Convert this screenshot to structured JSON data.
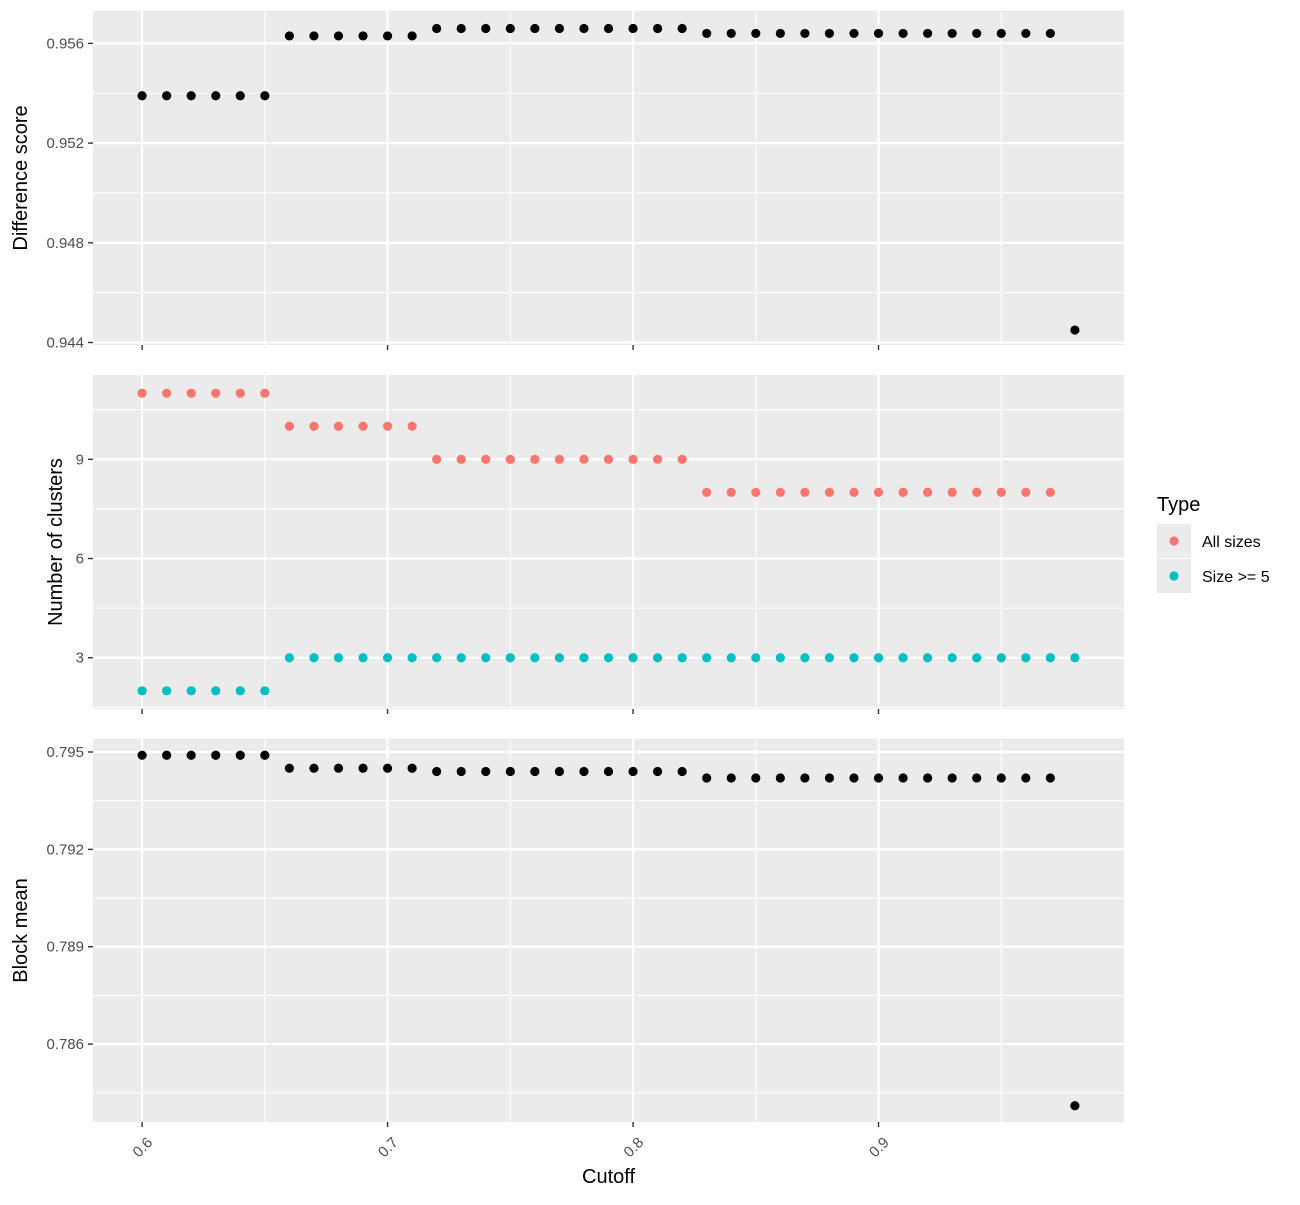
{
  "chart_data": {
    "type": "scatter",
    "layout": "vertically stacked facets with shared x-axis",
    "xlabel": "Cutoff",
    "x_ticks": [
      "0.6",
      "0.7",
      "0.8",
      "0.9"
    ],
    "xlim": [
      0.58,
      1.0
    ],
    "grid": true,
    "colors": {
      "panel_bg": "#ebebeb",
      "grid": "#ffffff",
      "point_default": "#000000",
      "all_sizes": "#f8766d",
      "size_ge_5": "#00bfc4"
    },
    "legend": {
      "title": "Type",
      "position": "right",
      "entries": [
        {
          "label": "All sizes",
          "color": "#f8766d"
        },
        {
          "label": "Size >= 5",
          "color": "#00bfc4"
        }
      ]
    },
    "panels": [
      {
        "ylabel": "Difference score",
        "y_ticks": [
          "0.944",
          "0.948",
          "0.952",
          "0.956"
        ],
        "ylim": [
          0.9439,
          0.9573
        ],
        "series": [
          {
            "color": "#000000",
            "x": [
              0.6,
              0.61,
              0.62,
              0.63,
              0.64,
              0.65,
              0.66,
              0.67,
              0.68,
              0.69,
              0.7,
              0.71,
              0.72,
              0.73,
              0.74,
              0.75,
              0.76,
              0.77,
              0.78,
              0.79,
              0.8,
              0.81,
              0.82,
              0.83,
              0.84,
              0.85,
              0.86,
              0.87,
              0.88,
              0.89,
              0.9,
              0.91,
              0.92,
              0.93,
              0.94,
              0.95,
              0.96,
              0.97,
              0.98
            ],
            "y": [
              0.9539,
              0.9539,
              0.9539,
              0.9539,
              0.9539,
              0.9539,
              0.9563,
              0.9563,
              0.9563,
              0.9563,
              0.9563,
              0.9563,
              0.9566,
              0.9566,
              0.9566,
              0.9566,
              0.9566,
              0.9566,
              0.9566,
              0.9566,
              0.9566,
              0.9566,
              0.9566,
              0.9564,
              0.9564,
              0.9564,
              0.9564,
              0.9564,
              0.9564,
              0.9564,
              0.9564,
              0.9564,
              0.9564,
              0.9564,
              0.9564,
              0.9564,
              0.9564,
              0.9564,
              0.9445
            ]
          }
        ]
      },
      {
        "ylabel": "Number of clusters",
        "y_ticks": [
          "3",
          "6",
          "9"
        ],
        "ylim": [
          1.45,
          11.55
        ],
        "series": [
          {
            "name": "All sizes",
            "color": "#f8766d",
            "x": [
              0.6,
              0.61,
              0.62,
              0.63,
              0.64,
              0.65,
              0.66,
              0.67,
              0.68,
              0.69,
              0.7,
              0.71,
              0.72,
              0.73,
              0.74,
              0.75,
              0.76,
              0.77,
              0.78,
              0.79,
              0.8,
              0.81,
              0.82,
              0.83,
              0.84,
              0.85,
              0.86,
              0.87,
              0.88,
              0.89,
              0.9,
              0.91,
              0.92,
              0.93,
              0.94,
              0.95,
              0.96,
              0.97
            ],
            "y": [
              11,
              11,
              11,
              11,
              11,
              11,
              10,
              10,
              10,
              10,
              10,
              10,
              9,
              9,
              9,
              9,
              9,
              9,
              9,
              9,
              9,
              9,
              9,
              8,
              8,
              8,
              8,
              8,
              8,
              8,
              8,
              8,
              8,
              8,
              8,
              8,
              8,
              8
            ]
          },
          {
            "name": "Size >= 5",
            "color": "#00bfc4",
            "x": [
              0.6,
              0.61,
              0.62,
              0.63,
              0.64,
              0.65,
              0.66,
              0.67,
              0.68,
              0.69,
              0.7,
              0.71,
              0.72,
              0.73,
              0.74,
              0.75,
              0.76,
              0.77,
              0.78,
              0.79,
              0.8,
              0.81,
              0.82,
              0.83,
              0.84,
              0.85,
              0.86,
              0.87,
              0.88,
              0.89,
              0.9,
              0.91,
              0.92,
              0.93,
              0.94,
              0.95,
              0.96,
              0.97,
              0.98
            ],
            "y": [
              2,
              2,
              2,
              2,
              2,
              2,
              3,
              3,
              3,
              3,
              3,
              3,
              3,
              3,
              3,
              3,
              3,
              3,
              3,
              3,
              3,
              3,
              3,
              3,
              3,
              3,
              3,
              3,
              3,
              3,
              3,
              3,
              3,
              3,
              3,
              3,
              3,
              3,
              3
            ]
          }
        ]
      },
      {
        "ylabel": "Block mean",
        "y_ticks": [
          "0.786",
          "0.789",
          "0.792",
          "0.795"
        ],
        "ylim": [
          0.7836,
          0.7954
        ],
        "series": [
          {
            "color": "#000000",
            "x": [
              0.6,
              0.61,
              0.62,
              0.63,
              0.64,
              0.65,
              0.66,
              0.67,
              0.68,
              0.69,
              0.7,
              0.71,
              0.72,
              0.73,
              0.74,
              0.75,
              0.76,
              0.77,
              0.78,
              0.79,
              0.8,
              0.81,
              0.82,
              0.83,
              0.84,
              0.85,
              0.86,
              0.87,
              0.88,
              0.89,
              0.9,
              0.91,
              0.92,
              0.93,
              0.94,
              0.95,
              0.96,
              0.97,
              0.98
            ],
            "y": [
              0.7949,
              0.7949,
              0.7949,
              0.7949,
              0.7949,
              0.7949,
              0.7945,
              0.7945,
              0.7945,
              0.7945,
              0.7945,
              0.7945,
              0.7944,
              0.7944,
              0.7944,
              0.7944,
              0.7944,
              0.7944,
              0.7944,
              0.7944,
              0.7944,
              0.7944,
              0.7944,
              0.7942,
              0.7942,
              0.7942,
              0.7942,
              0.7942,
              0.7942,
              0.7942,
              0.7942,
              0.7942,
              0.7942,
              0.7942,
              0.7942,
              0.7942,
              0.7942,
              0.7942,
              0.7841
            ]
          }
        ]
      }
    ]
  }
}
